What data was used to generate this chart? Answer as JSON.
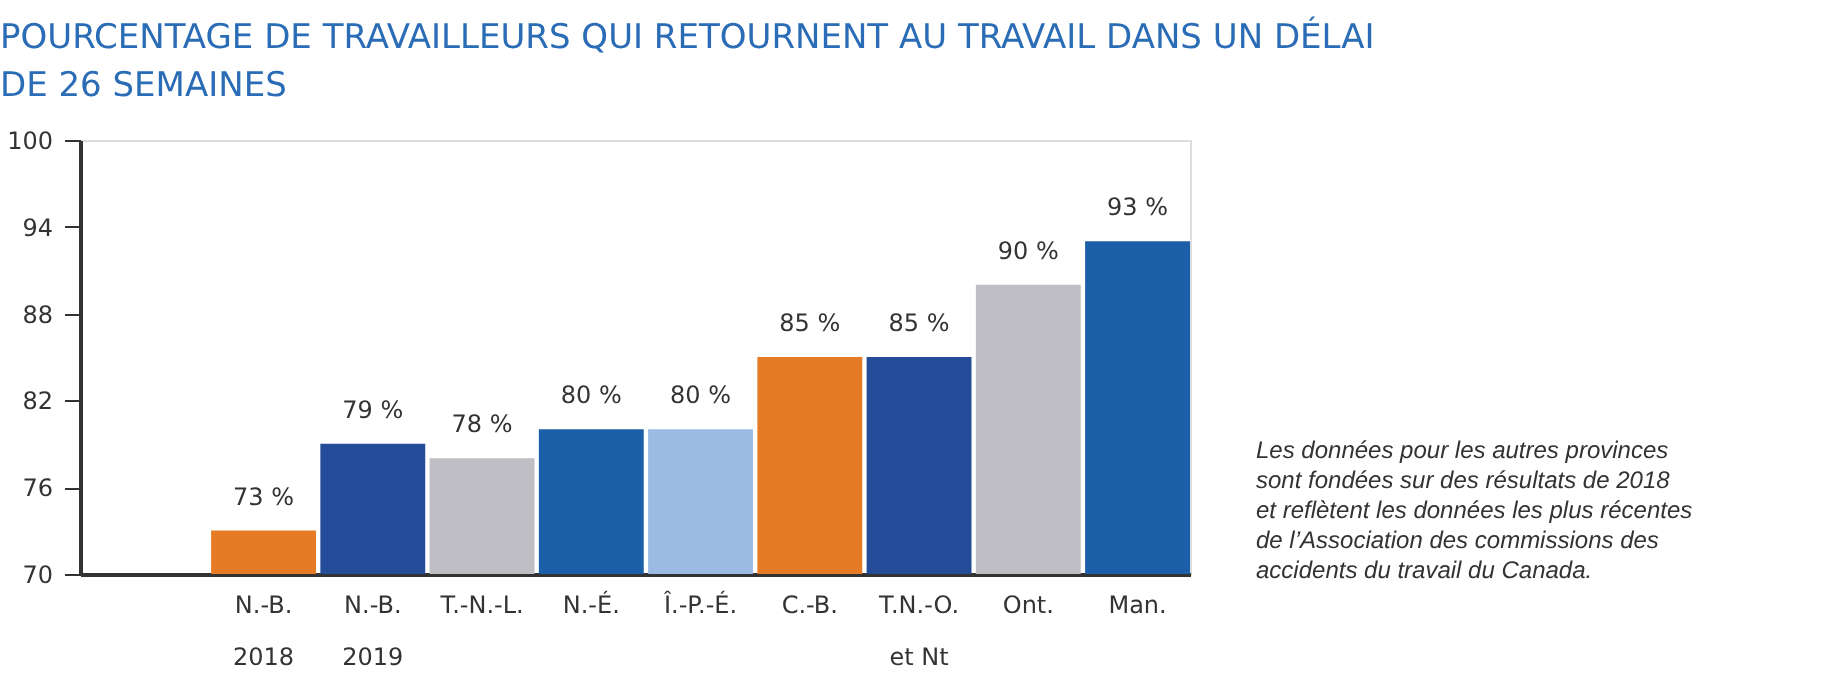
{
  "chart_data": {
    "type": "bar",
    "title": "POURCENTAGE DE TRAVAILLEURS QUI RETOURNENT AU TRAVAIL DANS UN DÉLAI\nDE 26 SEMAINES",
    "categories": [
      "N.-B.\n2018",
      "N.-B.\n2019",
      "T.-N.-L.",
      "N.-É.",
      "Î.-P.-É.",
      "C.-B.",
      "T.N.-O.\net Nt",
      "Ont.",
      "Man."
    ],
    "values": [
      73,
      79,
      78,
      80,
      80,
      85,
      85,
      90,
      93
    ],
    "colors": [
      "#e57c25",
      "#254c99",
      "#bebec4",
      "#1a5fa8",
      "#9cbbe3",
      "#e57c25",
      "#254c99",
      "#bebec4",
      "#1a5fa8"
    ],
    "value_labels": [
      "73 %",
      "79 %",
      "78 %",
      "80 %",
      "80 %",
      "85 %",
      "85 %",
      "90 %",
      "93 %"
    ],
    "ylim": [
      70,
      100
    ],
    "yticks": [
      70,
      76,
      82,
      88,
      94,
      100
    ],
    "grid": false,
    "annotations": [
      "Les données pour les autres provinces\nsont fondées sur des résultats de 2018\net reflètent les données les plus récentes\nde l’Association des commissions des\naccidents du travail du Canada."
    ]
  }
}
